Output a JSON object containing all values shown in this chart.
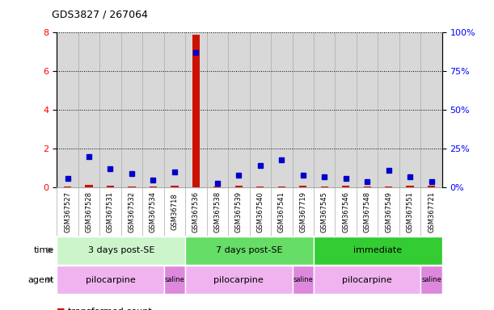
{
  "title": "GDS3827 / 267064",
  "samples": [
    "GSM367527",
    "GSM367528",
    "GSM367531",
    "GSM367532",
    "GSM367534",
    "GSM36718",
    "GSM367536",
    "GSM367538",
    "GSM367539",
    "GSM367540",
    "GSM367541",
    "GSM367719",
    "GSM367545",
    "GSM367546",
    "GSM367548",
    "GSM367549",
    "GSM367551",
    "GSM367721"
  ],
  "transformed_count": [
    0.05,
    0.12,
    0.08,
    0.05,
    0.06,
    0.08,
    7.9,
    0.06,
    0.1,
    0.05,
    0.05,
    0.08,
    0.05,
    0.1,
    0.05,
    0.06,
    0.08,
    0.09
  ],
  "percentile_rank": [
    6.0,
    20.0,
    12.0,
    9.0,
    5.0,
    10.0,
    87.0,
    3.0,
    8.0,
    14.0,
    18.0,
    8.0,
    7.0,
    6.0,
    4.0,
    11.0,
    7.0,
    4.0
  ],
  "time_groups": [
    {
      "label": "3 days post-SE",
      "start": 0,
      "end": 6,
      "color": "#ccf5cc"
    },
    {
      "label": "7 days post-SE",
      "start": 6,
      "end": 12,
      "color": "#66dd66"
    },
    {
      "label": "immediate",
      "start": 12,
      "end": 18,
      "color": "#33cc33"
    }
  ],
  "agent_groups": [
    {
      "label": "pilocarpine",
      "start": 0,
      "end": 5,
      "color": "#f0b3f0"
    },
    {
      "label": "saline",
      "start": 5,
      "end": 6,
      "color": "#dd88dd"
    },
    {
      "label": "pilocarpine",
      "start": 6,
      "end": 11,
      "color": "#f0b3f0"
    },
    {
      "label": "saline",
      "start": 11,
      "end": 12,
      "color": "#dd88dd"
    },
    {
      "label": "pilocarpine",
      "start": 12,
      "end": 17,
      "color": "#f0b3f0"
    },
    {
      "label": "saline",
      "start": 17,
      "end": 18,
      "color": "#dd88dd"
    }
  ],
  "ylim_left": [
    0,
    8
  ],
  "ylim_right": [
    0,
    100
  ],
  "yticks_left": [
    0,
    2,
    4,
    6,
    8
  ],
  "yticks_right": [
    0,
    25,
    50,
    75,
    100
  ],
  "ytick_labels_right": [
    "0",
    "25",
    "50",
    "75",
    "100%"
  ],
  "bar_color": "#cc1100",
  "point_color": "#0000cc",
  "plot_bg": "#ffffff",
  "sample_bg": "#d8d8d8",
  "sample_border": "#aaaaaa"
}
